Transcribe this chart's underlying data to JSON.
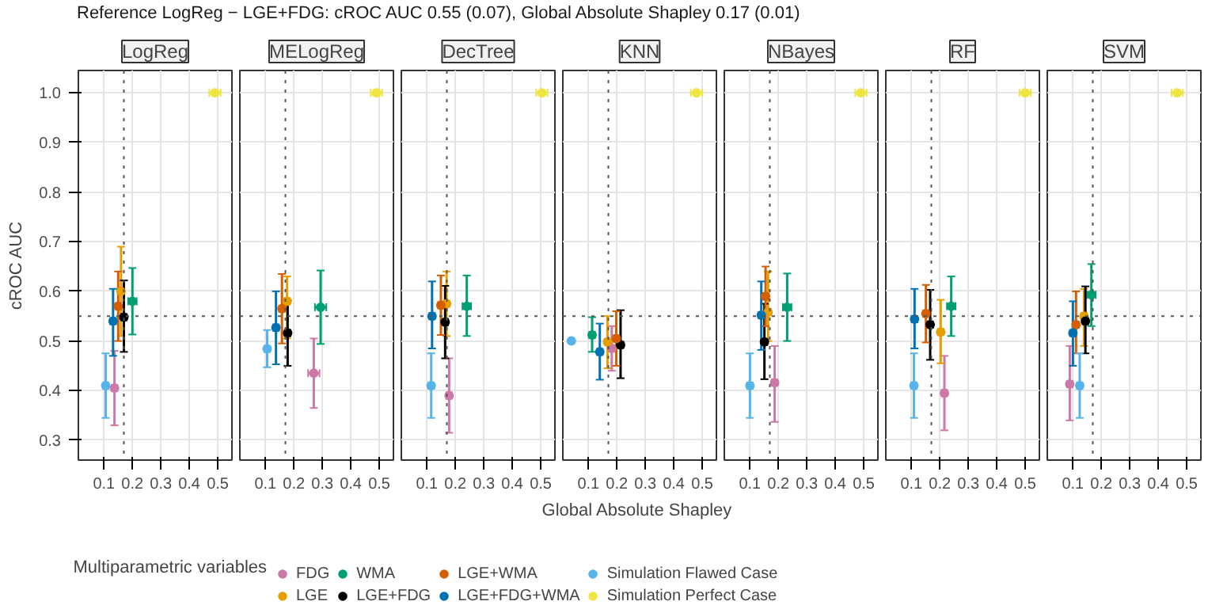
{
  "chart_data": [
    {
      "type": "scatter",
      "title": "LogReg",
      "annotations": [
        "Reference LogReg − LGE+FDG: cROC AUC 0.55 (0.07), Global Absolute Shapley 0.17 (0.01)"
      ],
      "ylabel": "cROC AUC",
      "legend": "bottom",
      "legend_title": "Multiparametric variables",
      "xlim": [
        0.01,
        0.55
      ],
      "ylim": [
        0.26,
        1.045
      ],
      "xticks": [
        0.1,
        0.2,
        0.3,
        0.4,
        0.5
      ],
      "yticks": [
        0.3,
        0.4,
        0.5,
        0.6,
        0.7,
        0.8,
        0.9,
        {
          "value": 1.0,
          "label": "1.0"
        }
      ],
      "grid": true,
      "marker": "circle",
      "ref_lines": [
        {
          "axis": "y",
          "value": 0.55,
          "line_style": "dotted"
        },
        {
          "axis": "x",
          "value": 0.17,
          "line_style": "dotted"
        }
      ],
      "series": [
        {
          "name": "FDG",
          "color": "#cc79a7",
          "x": [
            0.137
          ],
          "values": [
            0.405
          ],
          "errors": [
            [
              0.33,
              0.48
            ]
          ],
          "xerrors": [
            0.01
          ]
        },
        {
          "name": "LGE",
          "color": "#e69f00",
          "x": [
            0.16
          ],
          "values": [
            0.6
          ],
          "errors": [
            [
              0.51,
              0.69
            ]
          ],
          "xerrors": [
            0.01
          ]
        },
        {
          "name": "WMA",
          "color": "#009e73",
          "x": [
            0.2
          ],
          "values": [
            0.58
          ],
          "errors": [
            [
              0.513,
              0.647
            ]
          ],
          "xerrors": [
            0.015
          ]
        },
        {
          "name": "LGE+FDG",
          "color": "#000000",
          "x": [
            0.17
          ],
          "values": [
            0.548
          ],
          "errors": [
            [
              0.478,
              0.622
            ]
          ],
          "xerrors": [
            0.01
          ]
        },
        {
          "name": "LGE+WMA",
          "color": "#d55e00",
          "x": [
            0.15
          ],
          "values": [
            0.57
          ],
          "errors": [
            [
              0.5,
              0.64
            ]
          ],
          "xerrors": [
            0.01
          ]
        },
        {
          "name": "LGE+FDG+WMA",
          "color": "#0072b2",
          "x": [
            0.132
          ],
          "values": [
            0.54
          ],
          "errors": [
            [
              0.47,
              0.605
            ]
          ],
          "xerrors": [
            0.01
          ]
        },
        {
          "name": "Simulation Flawed Case",
          "color": "#56b4e9",
          "x": [
            0.106
          ],
          "values": [
            0.41
          ],
          "errors": [
            [
              0.345,
              0.475
            ]
          ],
          "xerrors": [
            0.01
          ]
        },
        {
          "name": "Simulation Perfect Case",
          "color": "#f0e442",
          "x": [
            0.49
          ],
          "values": [
            1.0
          ],
          "errors": [
            [
              0.998,
              1.002
            ]
          ],
          "xerrors": [
            0.02
          ]
        }
      ]
    },
    {
      "type": "scatter",
      "title": "MELogReg",
      "tick_labels": "x",
      "xlim": [
        0.01,
        0.55
      ],
      "ylim": [
        0.26,
        1.045
      ],
      "xticks": [
        0.1,
        0.2,
        0.3,
        0.4,
        0.5
      ],
      "yticks": [
        0.3,
        0.4,
        0.5,
        0.6,
        0.7,
        0.8,
        0.9,
        1.0
      ],
      "grid": true,
      "marker": "circle",
      "ref_lines": [
        {
          "axis": "y",
          "value": 0.55,
          "line_style": "dotted"
        },
        {
          "axis": "x",
          "value": 0.17,
          "line_style": "dotted"
        }
      ],
      "series": [
        {
          "name": "FDG",
          "color": "#cc79a7",
          "x": [
            0.27
          ],
          "values": [
            0.435
          ],
          "errors": [
            [
              0.365,
              0.505
            ]
          ],
          "xerrors": [
            0.02
          ]
        },
        {
          "name": "LGE",
          "color": "#e69f00",
          "x": [
            0.176
          ],
          "values": [
            0.58
          ],
          "errors": [
            [
              0.505,
              0.63
            ]
          ],
          "xerrors": [
            0.01
          ]
        },
        {
          "name": "WMA",
          "color": "#009e73",
          "x": [
            0.294
          ],
          "values": [
            0.568
          ],
          "errors": [
            [
              0.494,
              0.642
            ]
          ],
          "xerrors": [
            0.02
          ]
        },
        {
          "name": "LGE+FDG",
          "color": "#000000",
          "x": [
            0.178
          ],
          "values": [
            0.516
          ],
          "errors": [
            [
              0.45,
              0.582
            ]
          ],
          "xerrors": [
            0.01
          ]
        },
        {
          "name": "LGE+WMA",
          "color": "#d55e00",
          "x": [
            0.158
          ],
          "values": [
            0.565
          ],
          "errors": [
            [
              0.495,
              0.635
            ]
          ],
          "xerrors": [
            0.01
          ]
        },
        {
          "name": "LGE+FDG+WMA",
          "color": "#0072b2",
          "x": [
            0.137
          ],
          "values": [
            0.527
          ],
          "errors": [
            [
              0.453,
              0.6
            ]
          ],
          "xerrors": [
            0.01
          ]
        },
        {
          "name": "Simulation Flawed Case",
          "color": "#56b4e9",
          "x": [
            0.106
          ],
          "values": [
            0.484
          ],
          "errors": [
            [
              0.447,
              0.522
            ]
          ],
          "xerrors": [
            0.01
          ]
        },
        {
          "name": "Simulation Perfect Case",
          "color": "#f0e442",
          "x": [
            0.49
          ],
          "values": [
            1.0
          ],
          "errors": [
            [
              0.998,
              1.002
            ]
          ],
          "xerrors": [
            0.02
          ]
        }
      ]
    },
    {
      "type": "scatter",
      "title": "DecTree",
      "tick_labels": "x",
      "xlim": [
        0.01,
        0.55
      ],
      "ylim": [
        0.26,
        1.045
      ],
      "xticks": [
        0.1,
        0.2,
        0.3,
        0.4,
        0.5
      ],
      "yticks": [
        0.3,
        0.4,
        0.5,
        0.6,
        0.7,
        0.8,
        0.9,
        1.0
      ],
      "grid": true,
      "marker": "circle",
      "ref_lines": [
        {
          "axis": "y",
          "value": 0.55,
          "line_style": "dotted"
        },
        {
          "axis": "x",
          "value": 0.17,
          "line_style": "dotted"
        }
      ],
      "series": [
        {
          "name": "FDG",
          "color": "#cc79a7",
          "x": [
            0.178
          ],
          "values": [
            0.39
          ],
          "errors": [
            [
              0.315,
              0.465
            ]
          ],
          "xerrors": [
            0.01
          ]
        },
        {
          "name": "LGE",
          "color": "#e69f00",
          "x": [
            0.169
          ],
          "values": [
            0.575
          ],
          "errors": [
            [
              0.51,
              0.64
            ]
          ],
          "xerrors": [
            0.01
          ]
        },
        {
          "name": "WMA",
          "color": "#009e73",
          "x": [
            0.24
          ],
          "values": [
            0.57
          ],
          "errors": [
            [
              0.51,
              0.632
            ]
          ],
          "xerrors": [
            0.015
          ]
        },
        {
          "name": "LGE+FDG",
          "color": "#000000",
          "x": [
            0.164
          ],
          "values": [
            0.538
          ],
          "errors": [
            [
              0.465,
              0.611
            ]
          ],
          "xerrors": [
            0.01
          ]
        },
        {
          "name": "LGE+WMA",
          "color": "#d55e00",
          "x": [
            0.149
          ],
          "values": [
            0.572
          ],
          "errors": [
            [
              0.512,
              0.632
            ]
          ],
          "xerrors": [
            0.01
          ]
        },
        {
          "name": "LGE+FDG+WMA",
          "color": "#0072b2",
          "x": [
            0.118
          ],
          "values": [
            0.55
          ],
          "errors": [
            [
              0.485,
              0.62
            ]
          ],
          "xerrors": [
            0.01
          ]
        },
        {
          "name": "Simulation Flawed Case",
          "color": "#56b4e9",
          "x": [
            0.115
          ],
          "values": [
            0.41
          ],
          "errors": [
            [
              0.345,
              0.475
            ]
          ],
          "xerrors": [
            0.01
          ]
        },
        {
          "name": "Simulation Perfect Case",
          "color": "#f0e442",
          "x": [
            0.504
          ],
          "values": [
            1.0
          ],
          "errors": [
            [
              0.998,
              1.002
            ]
          ],
          "xerrors": [
            0.02
          ]
        }
      ]
    },
    {
      "type": "scatter",
      "title": "KNN",
      "xlabel": "Global Absolute Shapley",
      "tick_labels": "x",
      "xlim": [
        0.01,
        0.55
      ],
      "ylim": [
        0.26,
        1.045
      ],
      "xticks": [
        0.1,
        0.2,
        0.3,
        0.4,
        0.5
      ],
      "yticks": [
        0.3,
        0.4,
        0.5,
        0.6,
        0.7,
        0.8,
        0.9,
        1.0
      ],
      "grid": true,
      "marker": "circle",
      "ref_lines": [
        {
          "axis": "y",
          "value": 0.55,
          "line_style": "dotted"
        },
        {
          "axis": "x",
          "value": 0.17,
          "line_style": "dotted"
        }
      ],
      "series": [
        {
          "name": "FDG",
          "color": "#cc79a7",
          "x": [
            0.182
          ],
          "values": [
            0.485
          ],
          "errors": [
            [
              0.44,
              0.53
            ]
          ],
          "xerrors": [
            0.01
          ]
        },
        {
          "name": "LGE",
          "color": "#e69f00",
          "x": [
            0.167
          ],
          "values": [
            0.498
          ],
          "errors": [
            [
              0.445,
              0.55
            ]
          ],
          "xerrors": [
            0.01
          ]
        },
        {
          "name": "WMA",
          "color": "#009e73",
          "x": [
            0.113
          ],
          "values": [
            0.512
          ],
          "errors": [
            [
              0.478,
              0.548
            ]
          ],
          "xerrors": [
            0.01
          ]
        },
        {
          "name": "LGE+FDG",
          "color": "#000000",
          "x": [
            0.213
          ],
          "values": [
            0.492
          ],
          "errors": [
            [
              0.425,
              0.562
            ]
          ],
          "xerrors": [
            0.01
          ]
        },
        {
          "name": "LGE+WMA",
          "color": "#d55e00",
          "x": [
            0.198
          ],
          "values": [
            0.505
          ],
          "errors": [
            [
              0.45,
              0.56
            ]
          ],
          "xerrors": [
            0.01
          ]
        },
        {
          "name": "LGE+FDG+WMA",
          "color": "#0072b2",
          "x": [
            0.14
          ],
          "values": [
            0.478
          ],
          "errors": [
            [
              0.422,
              0.535
            ]
          ],
          "xerrors": [
            0.01
          ]
        },
        {
          "name": "Simulation Flawed Case",
          "color": "#56b4e9",
          "x": [
            0.04
          ],
          "values": [
            0.5
          ],
          "errors": [
            [
              0.498,
              0.502
            ]
          ],
          "xerrors": [
            0.005
          ]
        },
        {
          "name": "Simulation Perfect Case",
          "color": "#f0e442",
          "x": [
            0.48
          ],
          "values": [
            1.0
          ],
          "errors": [
            [
              0.998,
              1.002
            ]
          ],
          "xerrors": [
            0.02
          ]
        }
      ]
    },
    {
      "type": "scatter",
      "title": "NBayes",
      "tick_labels": "x",
      "xlim": [
        0.01,
        0.55
      ],
      "ylim": [
        0.26,
        1.045
      ],
      "xticks": [
        0.1,
        0.2,
        0.3,
        0.4,
        0.5
      ],
      "yticks": [
        0.3,
        0.4,
        0.5,
        0.6,
        0.7,
        0.8,
        0.9,
        1.0
      ],
      "grid": true,
      "marker": "circle",
      "ref_lines": [
        {
          "axis": "y",
          "value": 0.55,
          "line_style": "dotted"
        },
        {
          "axis": "x",
          "value": 0.17,
          "line_style": "dotted"
        }
      ],
      "series": [
        {
          "name": "FDG",
          "color": "#cc79a7",
          "x": [
            0.187
          ],
          "values": [
            0.416
          ],
          "errors": [
            [
              0.337,
              0.49
            ]
          ],
          "xerrors": [
            0.01
          ]
        },
        {
          "name": "LGE",
          "color": "#e69f00",
          "x": [
            0.164
          ],
          "values": [
            0.558
          ],
          "errors": [
            [
              0.5,
              0.64
            ]
          ],
          "xerrors": [
            0.01
          ]
        },
        {
          "name": "WMA",
          "color": "#009e73",
          "x": [
            0.231
          ],
          "values": [
            0.568
          ],
          "errors": [
            [
              0.5,
              0.636
            ]
          ],
          "xerrors": [
            0.015
          ]
        },
        {
          "name": "LGE+FDG",
          "color": "#000000",
          "x": [
            0.151
          ],
          "values": [
            0.498
          ],
          "errors": [
            [
              0.423,
              0.575
            ]
          ],
          "xerrors": [
            0.01
          ]
        },
        {
          "name": "LGE+WMA",
          "color": "#d55e00",
          "x": [
            0.155
          ],
          "values": [
            0.59
          ],
          "errors": [
            [
              0.53,
              0.65
            ]
          ],
          "xerrors": [
            0.01
          ]
        },
        {
          "name": "LGE+FDG+WMA",
          "color": "#0072b2",
          "x": [
            0.14
          ],
          "values": [
            0.552
          ],
          "errors": [
            [
              0.482,
              0.62
            ]
          ],
          "xerrors": [
            0.01
          ]
        },
        {
          "name": "Simulation Flawed Case",
          "color": "#56b4e9",
          "x": [
            0.1
          ],
          "values": [
            0.41
          ],
          "errors": [
            [
              0.345,
              0.475
            ]
          ],
          "xerrors": [
            0.01
          ]
        },
        {
          "name": "Simulation Perfect Case",
          "color": "#f0e442",
          "x": [
            0.49
          ],
          "values": [
            1.0
          ],
          "errors": [
            [
              0.998,
              1.002
            ]
          ],
          "xerrors": [
            0.02
          ]
        }
      ]
    },
    {
      "type": "scatter",
      "title": "RF",
      "tick_labels": "x",
      "xlim": [
        0.01,
        0.55
      ],
      "ylim": [
        0.26,
        1.045
      ],
      "xticks": [
        0.1,
        0.2,
        0.3,
        0.4,
        0.5
      ],
      "yticks": [
        0.3,
        0.4,
        0.5,
        0.6,
        0.7,
        0.8,
        0.9,
        1.0
      ],
      "grid": true,
      "marker": "circle",
      "ref_lines": [
        {
          "axis": "y",
          "value": 0.55,
          "line_style": "dotted"
        },
        {
          "axis": "x",
          "value": 0.17,
          "line_style": "dotted"
        }
      ],
      "series": [
        {
          "name": "FDG",
          "color": "#cc79a7",
          "x": [
            0.216
          ],
          "values": [
            0.395
          ],
          "errors": [
            [
              0.32,
              0.47
            ]
          ],
          "xerrors": [
            0.01
          ]
        },
        {
          "name": "LGE",
          "color": "#e69f00",
          "x": [
            0.203
          ],
          "values": [
            0.518
          ],
          "errors": [
            [
              0.455,
              0.583
            ]
          ],
          "xerrors": [
            0.01
          ]
        },
        {
          "name": "WMA",
          "color": "#009e73",
          "x": [
            0.24
          ],
          "values": [
            0.57
          ],
          "errors": [
            [
              0.51,
              0.63
            ]
          ],
          "xerrors": [
            0.015
          ]
        },
        {
          "name": "LGE+FDG",
          "color": "#000000",
          "x": [
            0.166
          ],
          "values": [
            0.533
          ],
          "errors": [
            [
              0.462,
              0.603
            ]
          ],
          "xerrors": [
            0.01
          ]
        },
        {
          "name": "LGE+WMA",
          "color": "#d55e00",
          "x": [
            0.151
          ],
          "values": [
            0.555
          ],
          "errors": [
            [
              0.497,
              0.613
            ]
          ],
          "xerrors": [
            0.01
          ]
        },
        {
          "name": "LGE+FDG+WMA",
          "color": "#0072b2",
          "x": [
            0.111
          ],
          "values": [
            0.544
          ],
          "errors": [
            [
              0.485,
              0.605
            ]
          ],
          "xerrors": [
            0.01
          ]
        },
        {
          "name": "Simulation Flawed Case",
          "color": "#56b4e9",
          "x": [
            0.109
          ],
          "values": [
            0.41
          ],
          "errors": [
            [
              0.345,
              0.475
            ]
          ],
          "xerrors": [
            0.01
          ]
        },
        {
          "name": "Simulation Perfect Case",
          "color": "#f0e442",
          "x": [
            0.5
          ],
          "values": [
            1.0
          ],
          "errors": [
            [
              0.998,
              1.002
            ]
          ],
          "xerrors": [
            0.02
          ]
        }
      ]
    },
    {
      "type": "scatter",
      "title": "SVM",
      "tick_labels": "x",
      "xlim": [
        0.01,
        0.55
      ],
      "ylim": [
        0.26,
        1.045
      ],
      "xticks": [
        0.1,
        0.2,
        0.3,
        0.4,
        0.5
      ],
      "yticks": [
        0.3,
        0.4,
        0.5,
        0.6,
        0.7,
        0.8,
        0.9,
        1.0
      ],
      "grid": true,
      "marker": "circle",
      "ref_lines": [
        {
          "axis": "y",
          "value": 0.55,
          "line_style": "dotted"
        },
        {
          "axis": "x",
          "value": 0.17,
          "line_style": "dotted"
        }
      ],
      "series": [
        {
          "name": "FDG",
          "color": "#cc79a7",
          "x": [
            0.089
          ],
          "values": [
            0.413
          ],
          "errors": [
            [
              0.34,
              0.49
            ]
          ],
          "xerrors": [
            0.01
          ]
        },
        {
          "name": "LGE",
          "color": "#e69f00",
          "x": [
            0.139
          ],
          "values": [
            0.55
          ],
          "errors": [
            [
              0.49,
              0.605
            ]
          ],
          "xerrors": [
            0.01
          ]
        },
        {
          "name": "WMA",
          "color": "#009e73",
          "x": [
            0.165
          ],
          "values": [
            0.593
          ],
          "errors": [
            [
              0.53,
              0.655
            ]
          ],
          "xerrors": [
            0.015
          ]
        },
        {
          "name": "LGE+FDG",
          "color": "#000000",
          "x": [
            0.144
          ],
          "values": [
            0.54
          ],
          "errors": [
            [
              0.475,
              0.61
            ]
          ],
          "xerrors": [
            0.01
          ]
        },
        {
          "name": "LGE+WMA",
          "color": "#d55e00",
          "x": [
            0.111
          ],
          "values": [
            0.533
          ],
          "errors": [
            [
              0.475,
              0.6
            ]
          ],
          "xerrors": [
            0.01
          ]
        },
        {
          "name": "LGE+FDG+WMA",
          "color": "#0072b2",
          "x": [
            0.1
          ],
          "values": [
            0.516
          ],
          "errors": [
            [
              0.45,
              0.58
            ]
          ],
          "xerrors": [
            0.01
          ]
        },
        {
          "name": "Simulation Flawed Case",
          "color": "#56b4e9",
          "x": [
            0.124
          ],
          "values": [
            0.41
          ],
          "errors": [
            [
              0.345,
              0.475
            ]
          ],
          "xerrors": [
            0.01
          ]
        },
        {
          "name": "Simulation Perfect Case",
          "color": "#f0e442",
          "x": [
            0.467
          ],
          "values": [
            1.0
          ],
          "errors": [
            [
              0.998,
              1.002
            ]
          ],
          "xerrors": [
            0.02
          ]
        }
      ]
    }
  ]
}
